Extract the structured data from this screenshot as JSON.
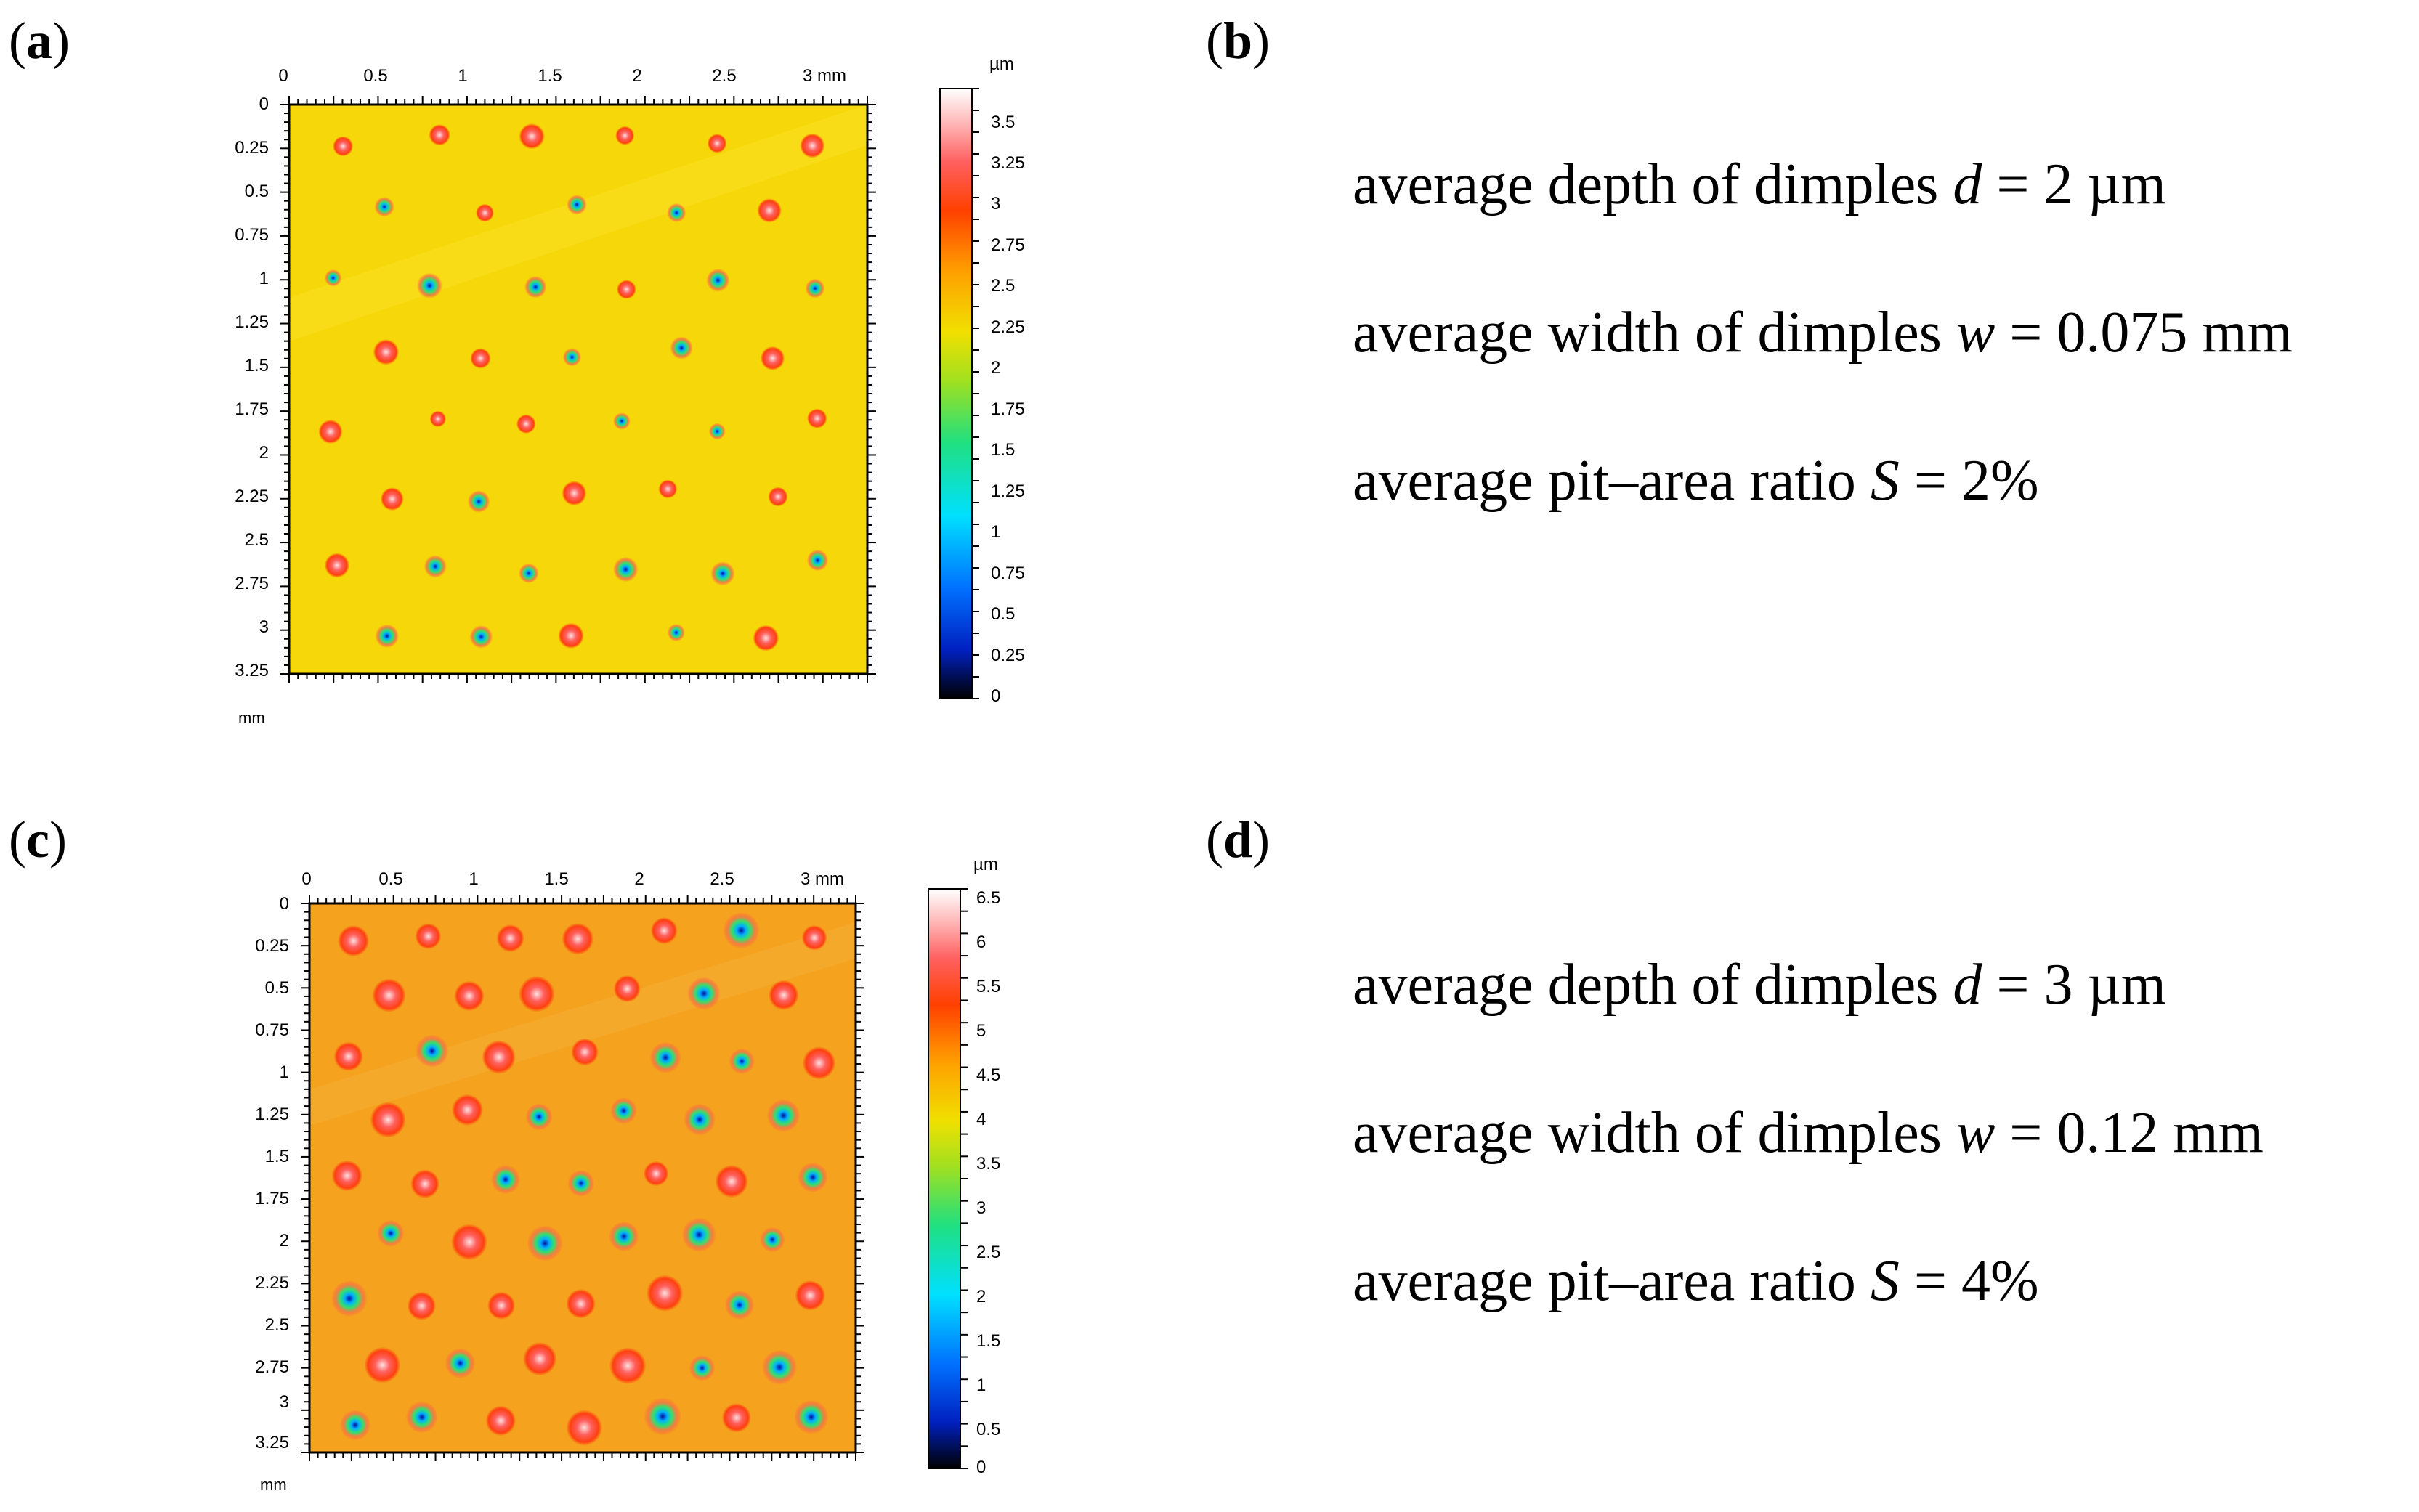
{
  "figure": {
    "panels": [
      {
        "id": "a",
        "label_open": "(",
        "label_letter": "a",
        "label_close": ")",
        "map": {
          "x_ticks": [
            "0",
            "0.5",
            "1",
            "1.5",
            "2",
            "2.5",
            "3 mm"
          ],
          "y_ticks": [
            "0",
            "0.25",
            "0.5",
            "0.75",
            "1",
            "1.25",
            "1.5",
            "1.75",
            "2",
            "2.25",
            "2.5",
            "2.75",
            "3",
            "3.25"
          ],
          "y_unit": "mm",
          "colorbar_unit": "µm",
          "colorbar_ticks": [
            "3.5",
            "3.25",
            "3",
            "2.75",
            "2.5",
            "2.25",
            "2",
            "1.75",
            "1.5",
            "1.25",
            "1",
            "0.75",
            "0.5",
            "0.25",
            "0"
          ],
          "surface_color": "#f6d80a"
        }
      },
      {
        "id": "b",
        "label_open": "(",
        "label_letter": "b",
        "label_close": ")",
        "params": {
          "depth": {
            "prefix": "average depth of dimples ",
            "symbol": "d",
            "suffix": " = 2 µm"
          },
          "width": {
            "prefix": "average width of dimples ",
            "symbol": "w",
            "suffix": " = 0.075 mm"
          },
          "ratio": {
            "prefix": "average pit–area ratio ",
            "symbol": "S",
            "suffix": " = 2%"
          }
        }
      },
      {
        "id": "c",
        "label_open": "(",
        "label_letter": "c",
        "label_close": ")",
        "map": {
          "x_ticks": [
            "0",
            "0.5",
            "1",
            "1.5",
            "2",
            "2.5",
            "3 mm"
          ],
          "y_ticks": [
            "0",
            "0.25",
            "0.5",
            "0.75",
            "1",
            "1.25",
            "1.5",
            "1.75",
            "2",
            "2.25",
            "2.5",
            "2.75",
            "3",
            "3.25"
          ],
          "y_unit": "mm",
          "colorbar_unit": "µm",
          "colorbar_ticks": [
            "6.5",
            "6",
            "5.5",
            "5",
            "4.5",
            "4",
            "3.5",
            "3",
            "2.5",
            "2",
            "1.5",
            "1",
            "0.5",
            "0"
          ],
          "surface_color": "#f5a21e"
        }
      },
      {
        "id": "d",
        "label_open": "(",
        "label_letter": "d",
        "label_close": ")",
        "params": {
          "depth": {
            "prefix": "average depth of dimples ",
            "symbol": "d",
            "suffix": " = 3 µm"
          },
          "width": {
            "prefix": "average width of dimples ",
            "symbol": "w",
            "suffix": " = 0.12 mm"
          },
          "ratio": {
            "prefix": "average pit–area ratio ",
            "symbol": "S",
            "suffix": " = 4%"
          }
        }
      }
    ]
  }
}
